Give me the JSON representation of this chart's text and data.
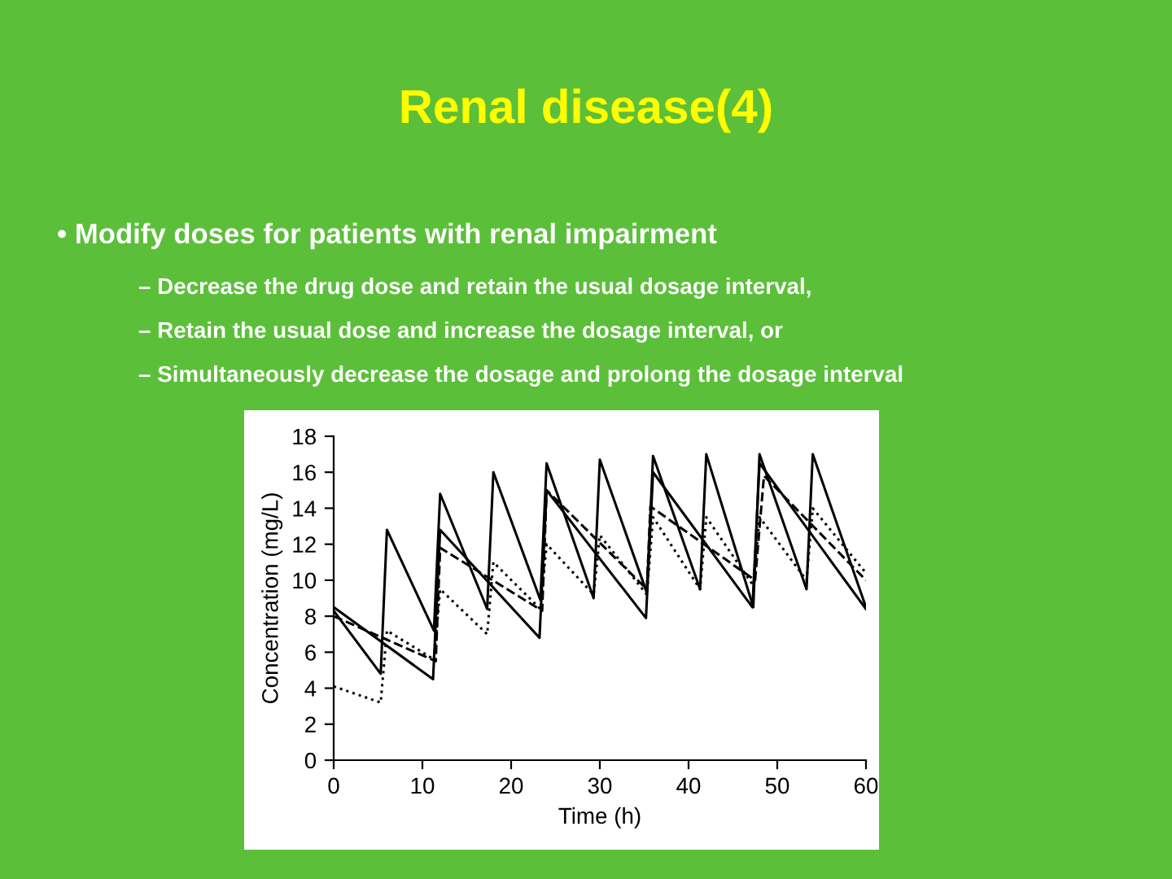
{
  "chart_data": {
    "type": "line",
    "title": "Renal disease(4)",
    "annotations": [
      "• Modify doses for patients with renal impairment",
      "– Decrease the drug dose and retain the usual dosage interval,",
      "– Retain the usual dose and increase the dosage interval, or",
      "– Simultaneously decrease the dosage and prolong the dosage interval"
    ],
    "xlabel": "Time (h)",
    "ylabel": "Concentration (mg/L)",
    "xlim": [
      0,
      60
    ],
    "ylim": [
      0,
      18
    ],
    "xticks": [
      0,
      10,
      20,
      30,
      40,
      50,
      60
    ],
    "yticks": [
      0,
      2,
      4,
      6,
      8,
      10,
      12,
      14,
      16,
      18
    ],
    "grid": false,
    "legend": false,
    "series": [
      {
        "color": "#000000",
        "line_style": "solid",
        "x": [
          0,
          5.3,
          6,
          11.3,
          12,
          17.3,
          18,
          23.3,
          24,
          29.3,
          30,
          35.3,
          36,
          41.3,
          42,
          47.3,
          48,
          53.3,
          54,
          60
        ],
        "values": [
          8.3,
          4.8,
          12.8,
          7.2,
          14.8,
          8.4,
          16,
          8.9,
          16.5,
          9,
          16.7,
          9.3,
          16.9,
          9.5,
          17,
          8.5,
          17,
          9.5,
          17,
          8.5
        ]
      },
      {
        "color": "#000000",
        "line_style": "solid",
        "x": [
          0,
          11.2,
          12,
          23.2,
          24,
          35.2,
          36,
          47.2,
          48,
          60
        ],
        "values": [
          8.5,
          4.5,
          12.8,
          6.8,
          15,
          7.9,
          16,
          8.5,
          16.5,
          8.4
        ]
      },
      {
        "color": "#000000",
        "line_style": "dotted",
        "x": [
          0,
          5.3,
          6,
          11.3,
          12,
          17.3,
          18,
          23.3,
          24,
          29.3,
          30,
          35.3,
          36,
          41.3,
          42,
          47.3,
          48,
          53.3,
          54,
          60
        ],
        "values": [
          4.1,
          3.2,
          7.2,
          5.6,
          9.5,
          7,
          11,
          8.4,
          12,
          9.2,
          12.5,
          9.2,
          13.5,
          9.5,
          13.5,
          9.7,
          13.5,
          10,
          14,
          10.4
        ]
      },
      {
        "color": "#000000",
        "line_style": "dashed",
        "x": [
          0,
          11.5,
          12,
          23.5,
          24,
          35.3,
          35.7,
          47.5,
          48.5,
          60
        ],
        "values": [
          8,
          5.5,
          11.8,
          8.3,
          15,
          9.5,
          14.1,
          10,
          15.8,
          10
        ]
      }
    ]
  }
}
